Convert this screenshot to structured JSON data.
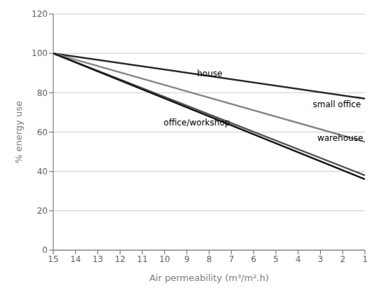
{
  "chart_data": {
    "type": "line",
    "xlabel": "Air permeability (m³/m².h)",
    "ylabel": "% energy use",
    "xlim": [
      15,
      1
    ],
    "ylim": [
      0,
      120
    ],
    "xticks": [
      15,
      14,
      13,
      12,
      11,
      10,
      9,
      8,
      7,
      6,
      5,
      4,
      3,
      2,
      1
    ],
    "yticks": [
      0,
      20,
      40,
      60,
      80,
      100,
      120
    ],
    "grid": true,
    "series": [
      {
        "name": "house",
        "color": "#2a2a2a",
        "x": [
          15,
          1
        ],
        "values": [
          100,
          77
        ]
      },
      {
        "name": "small office",
        "color": "#888888",
        "x": [
          15,
          1
        ],
        "values": [
          100,
          55
        ]
      },
      {
        "name": "office/workshop",
        "color": "#555555",
        "x": [
          15,
          1
        ],
        "values": [
          100,
          38
        ]
      },
      {
        "name": "warehouse",
        "color": "#1a1a1a",
        "x": [
          15,
          1
        ],
        "values": [
          100,
          36
        ]
      }
    ],
    "annotations": [
      {
        "text": "house",
        "x": 8.7,
        "y": 90
      },
      {
        "text": "small office",
        "x": 3.5,
        "y": 74
      },
      {
        "text": "office/workshop",
        "x": 10.2,
        "y": 65
      },
      {
        "text": "warehouse",
        "x": 3.3,
        "y": 57
      }
    ]
  }
}
